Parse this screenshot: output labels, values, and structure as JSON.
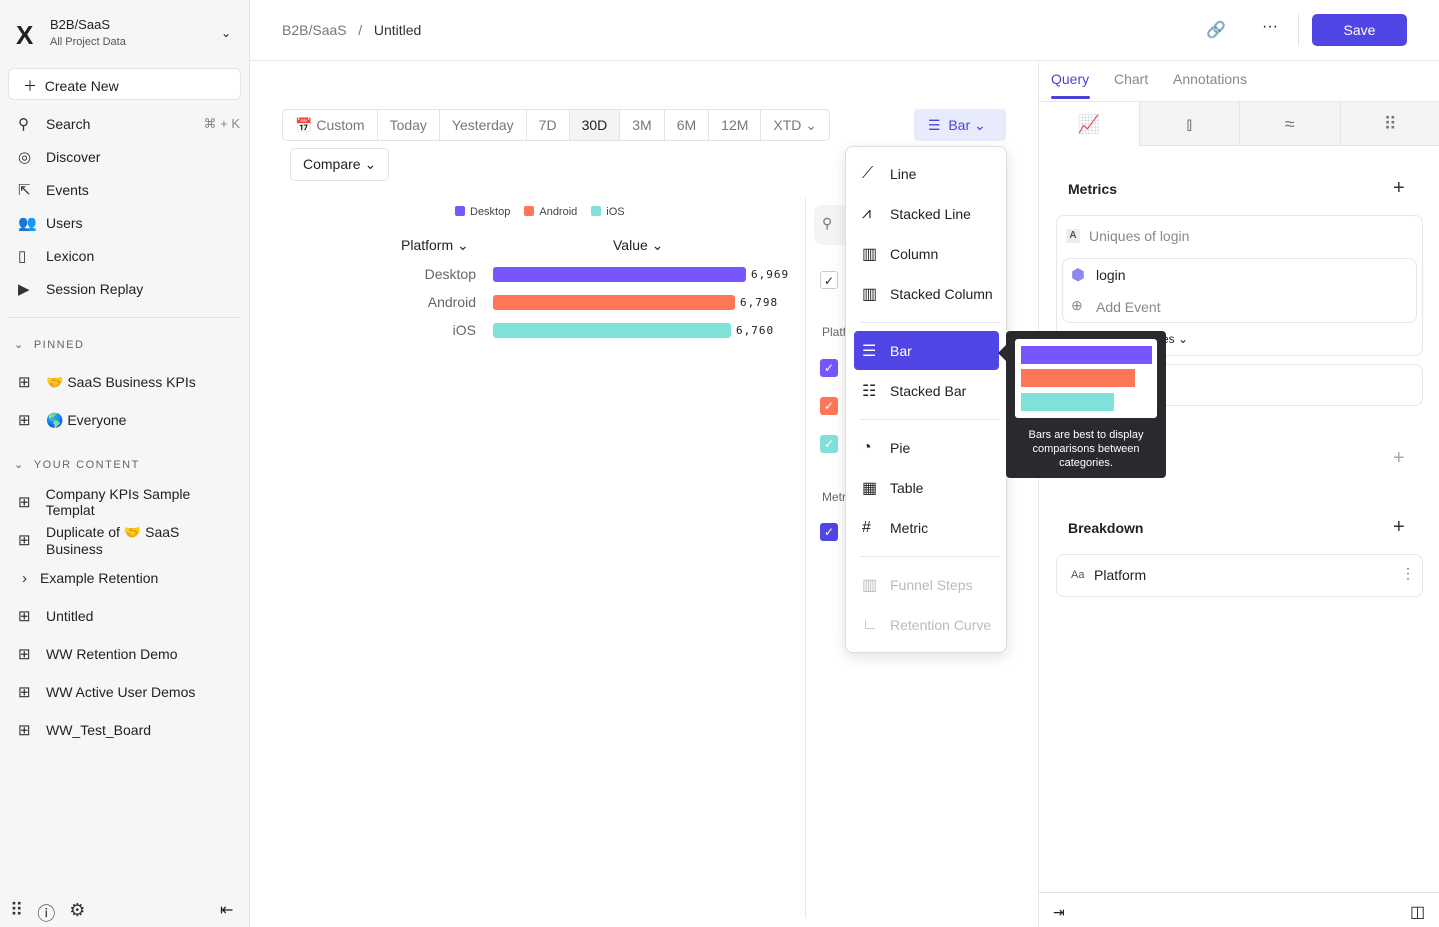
{
  "sidebar": {
    "project": "B2B/SaaS",
    "subtitle": "All Project Data",
    "create": "Create New",
    "nav": [
      {
        "label": "Search",
        "icon": "search-icon",
        "kbd": "⌘ + K"
      },
      {
        "label": "Discover",
        "icon": "compass-icon"
      },
      {
        "label": "Events",
        "icon": "cursor-click-icon"
      },
      {
        "label": "Users",
        "icon": "users-icon"
      },
      {
        "label": "Lexicon",
        "icon": "book-icon"
      },
      {
        "label": "Session Replay",
        "icon": "play-icon"
      }
    ],
    "pinned_title": "PINNED",
    "pinned": [
      "🤝 SaaS Business KPIs",
      "🌎 Everyone"
    ],
    "content_title": "YOUR CONTENT",
    "content": [
      "Company KPIs Sample Templat",
      "Duplicate of 🤝 SaaS Business",
      "Example Retention",
      "Untitled",
      "WW Retention Demo",
      "WW Active User Demos",
      "WW_Test_Board"
    ]
  },
  "header": {
    "crumb_root": "B2B/SaaS",
    "crumb_sep": "/",
    "title": "Untitled",
    "save": "Save"
  },
  "dates": [
    "Custom",
    "Today",
    "Yesterday",
    "7D",
    "30D",
    "3M",
    "6M",
    "12M",
    "XTD ⌄"
  ],
  "selected_date": "30D",
  "compare": "Compare ⌄",
  "chart_type_button": "Bar ⌄",
  "chart_data": {
    "type": "bar",
    "orientation": "horizontal",
    "categories": [
      "Desktop",
      "Android",
      "iOS"
    ],
    "values": [
      6969,
      6798,
      6760
    ],
    "labels": [
      "6,969",
      "6,798",
      "6,760"
    ],
    "colors": [
      "#7856ff",
      "#ff7557",
      "#80e1d9"
    ],
    "legend": [
      "Desktop",
      "Android",
      "iOS"
    ],
    "legend_position": "top",
    "col_headers": [
      "Platform ⌄",
      "Value ⌄"
    ]
  },
  "side_list": {
    "platform": "Platf",
    "metrics": "Metr"
  },
  "menu": {
    "items": [
      {
        "label": "Line",
        "icon": "line-chart-icon"
      },
      {
        "label": "Stacked Line",
        "icon": "stacked-line-icon"
      },
      {
        "label": "Column",
        "icon": "column-chart-icon"
      },
      {
        "label": "Stacked Column",
        "icon": "stacked-column-icon"
      },
      {
        "label": "Bar",
        "icon": "bar-chart-icon",
        "selected": true
      },
      {
        "label": "Stacked Bar",
        "icon": "stacked-bar-icon"
      },
      {
        "label": "Pie",
        "icon": "pie-chart-icon"
      },
      {
        "label": "Table",
        "icon": "table-icon"
      },
      {
        "label": "Metric",
        "icon": "hash-icon"
      },
      {
        "label": "Funnel Steps",
        "icon": "funnel-icon",
        "disabled": true
      },
      {
        "label": "Retention Curve",
        "icon": "retention-icon",
        "disabled": true
      }
    ]
  },
  "tooltip": "Bars are best to display comparisons between categories.",
  "right": {
    "tabs": [
      "Query",
      "Chart",
      "Annotations"
    ],
    "metrics_title": "Metrics",
    "metric_letter": "A",
    "metric_name": "Uniques of login",
    "event": "login",
    "add_event": "Add Event",
    "partial": "es ⌄",
    "breakdown_title": "Breakdown",
    "breakdown_type": "Aa",
    "breakdown": "Platform"
  }
}
